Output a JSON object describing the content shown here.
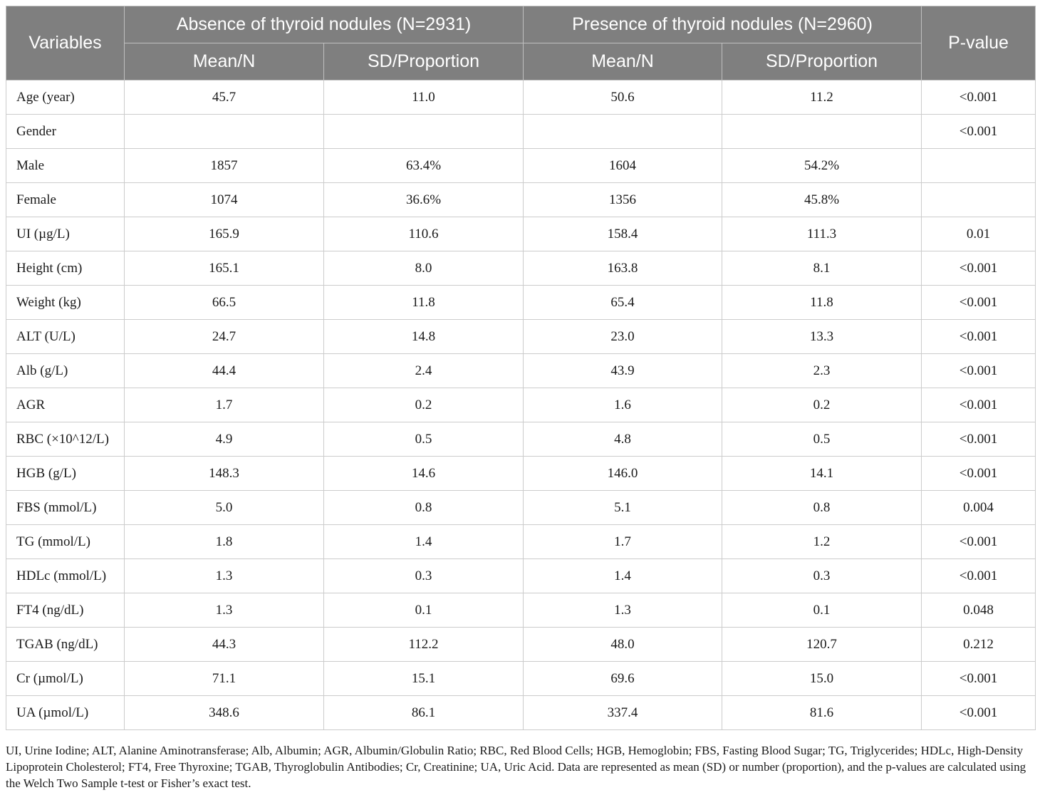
{
  "header": {
    "variables": "Variables",
    "group_absence": "Absence of thyroid nodules (N=2931)",
    "group_presence": "Presence of thyroid nodules (N=2960)",
    "p_value": "P-value",
    "mean_n": "Mean/N",
    "sd_prop": "SD/Proportion"
  },
  "rows": [
    {
      "variable": "Age (year)",
      "abs_mean": "45.7",
      "abs_sd": "11.0",
      "pre_mean": "50.6",
      "pre_sd": "11.2",
      "p": "<0.001"
    },
    {
      "variable": "Gender",
      "abs_mean": "",
      "abs_sd": "",
      "pre_mean": "",
      "pre_sd": "",
      "p": "<0.001"
    },
    {
      "variable": "Male",
      "abs_mean": "1857",
      "abs_sd": "63.4%",
      "pre_mean": "1604",
      "pre_sd": "54.2%",
      "p": ""
    },
    {
      "variable": "Female",
      "abs_mean": "1074",
      "abs_sd": "36.6%",
      "pre_mean": "1356",
      "pre_sd": "45.8%",
      "p": ""
    },
    {
      "variable": "UI (µg/L)",
      "abs_mean": "165.9",
      "abs_sd": "110.6",
      "pre_mean": "158.4",
      "pre_sd": "111.3",
      "p": "0.01"
    },
    {
      "variable": "Height (cm)",
      "abs_mean": "165.1",
      "abs_sd": "8.0",
      "pre_mean": "163.8",
      "pre_sd": "8.1",
      "p": "<0.001"
    },
    {
      "variable": "Weight (kg)",
      "abs_mean": "66.5",
      "abs_sd": "11.8",
      "pre_mean": "65.4",
      "pre_sd": "11.8",
      "p": "<0.001"
    },
    {
      "variable": "ALT (U/L)",
      "abs_mean": "24.7",
      "abs_sd": "14.8",
      "pre_mean": "23.0",
      "pre_sd": "13.3",
      "p": "<0.001"
    },
    {
      "variable": "Alb (g/L)",
      "abs_mean": "44.4",
      "abs_sd": "2.4",
      "pre_mean": "43.9",
      "pre_sd": "2.3",
      "p": "<0.001"
    },
    {
      "variable": "AGR",
      "abs_mean": "1.7",
      "abs_sd": "0.2",
      "pre_mean": "1.6",
      "pre_sd": "0.2",
      "p": "<0.001"
    },
    {
      "variable": "RBC (×10^12/L)",
      "abs_mean": "4.9",
      "abs_sd": "0.5",
      "pre_mean": "4.8",
      "pre_sd": "0.5",
      "p": "<0.001"
    },
    {
      "variable": "HGB (g/L)",
      "abs_mean": "148.3",
      "abs_sd": "14.6",
      "pre_mean": "146.0",
      "pre_sd": "14.1",
      "p": "<0.001"
    },
    {
      "variable": "FBS (mmol/L)",
      "abs_mean": "5.0",
      "abs_sd": "0.8",
      "pre_mean": "5.1",
      "pre_sd": "0.8",
      "p": "0.004"
    },
    {
      "variable": "TG (mmol/L)",
      "abs_mean": "1.8",
      "abs_sd": "1.4",
      "pre_mean": "1.7",
      "pre_sd": "1.2",
      "p": "<0.001"
    },
    {
      "variable": "HDLc (mmol/L)",
      "abs_mean": "1.3",
      "abs_sd": "0.3",
      "pre_mean": "1.4",
      "pre_sd": "0.3",
      "p": "<0.001"
    },
    {
      "variable": "FT4 (ng/dL)",
      "abs_mean": "1.3",
      "abs_sd": "0.1",
      "pre_mean": "1.3",
      "pre_sd": "0.1",
      "p": "0.048"
    },
    {
      "variable": "TGAB (ng/dL)",
      "abs_mean": "44.3",
      "abs_sd": "112.2",
      "pre_mean": "48.0",
      "pre_sd": "120.7",
      "p": "0.212"
    },
    {
      "variable": "Cr (µmol/L)",
      "abs_mean": "71.1",
      "abs_sd": "15.1",
      "pre_mean": "69.6",
      "pre_sd": "15.0",
      "p": "<0.001"
    },
    {
      "variable": "UA (µmol/L)",
      "abs_mean": "348.6",
      "abs_sd": "86.1",
      "pre_mean": "337.4",
      "pre_sd": "81.6",
      "p": "<0.001"
    }
  ],
  "footnote": "UI, Urine Iodine; ALT, Alanine Aminotransferase; Alb, Albumin; AGR, Albumin/Globulin Ratio; RBC, Red Blood Cells; HGB, Hemoglobin; FBS, Fasting Blood Sugar; TG, Triglycerides; HDLc, High-Density Lipoprotein Cholesterol; FT4, Free Thyroxine; TGAB, Thyroglobulin Antibodies; Cr, Creatinine; UA, Uric Acid. Data are represented as mean (SD) or number (proportion), and the p-values are calculated using the Welch Two Sample t-test or Fisher’s exact test."
}
